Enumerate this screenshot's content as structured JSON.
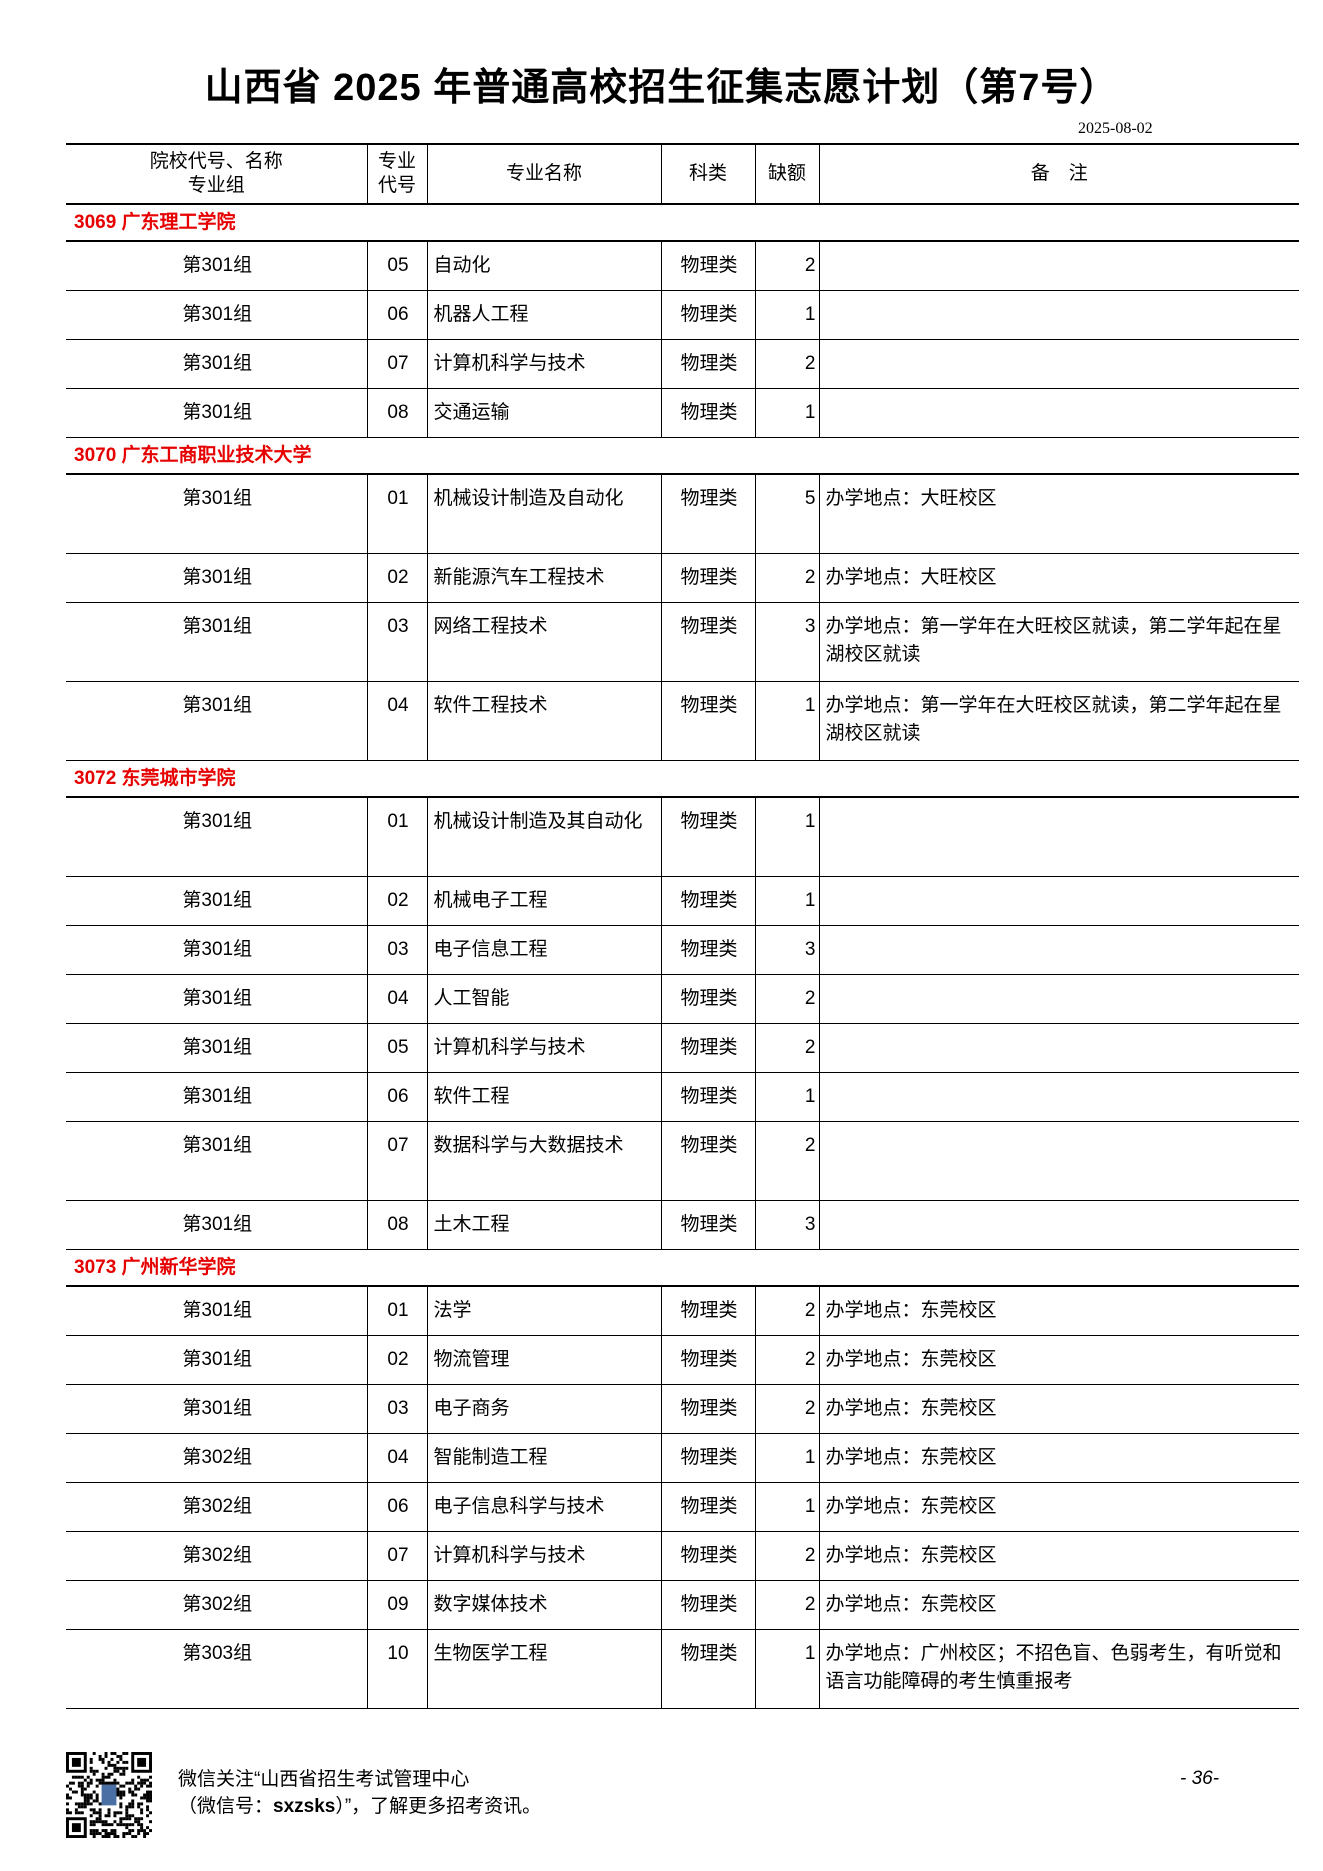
{
  "title": "山西省 2025 年普通高校招生征集志愿计划（第7号）",
  "date": "2025-08-02",
  "headers": {
    "school": "院校代号、名称\n专业组",
    "code": "专业\n代号",
    "name": "专业名称",
    "category": "科类",
    "quota": "缺额",
    "note": "备　注"
  },
  "sections": [
    {
      "school": "3069  广东理工学院",
      "rows": [
        {
          "group": "第301组",
          "code": "05",
          "name": "自动化",
          "category": "物理类",
          "quota": "2",
          "note": "",
          "lines": 1
        },
        {
          "group": "第301组",
          "code": "06",
          "name": "机器人工程",
          "category": "物理类",
          "quota": "1",
          "note": "",
          "lines": 1
        },
        {
          "group": "第301组",
          "code": "07",
          "name": "计算机科学与技术",
          "category": "物理类",
          "quota": "2",
          "note": "",
          "lines": 1
        },
        {
          "group": "第301组",
          "code": "08",
          "name": "交通运输",
          "category": "物理类",
          "quota": "1",
          "note": "",
          "lines": 1
        }
      ]
    },
    {
      "school": "3070  广东工商职业技术大学",
      "rows": [
        {
          "group": "第301组",
          "code": "01",
          "name": "机械设计制造及自动化",
          "category": "物理类",
          "quota": "5",
          "note": "办学地点：大旺校区",
          "lines": 2
        },
        {
          "group": "第301组",
          "code": "02",
          "name": "新能源汽车工程技术",
          "category": "物理类",
          "quota": "2",
          "note": "办学地点：大旺校区",
          "lines": 1
        },
        {
          "group": "第301组",
          "code": "03",
          "name": "网络工程技术",
          "category": "物理类",
          "quota": "3",
          "note": "办学地点：第一学年在大旺校区就读，第二学年起在星湖校区就读",
          "lines": 2
        },
        {
          "group": "第301组",
          "code": "04",
          "name": "软件工程技术",
          "category": "物理类",
          "quota": "1",
          "note": "办学地点：第一学年在大旺校区就读，第二学年起在星湖校区就读",
          "lines": 2
        }
      ]
    },
    {
      "school": "3072  东莞城市学院",
      "rows": [
        {
          "group": "第301组",
          "code": "01",
          "name": "机械设计制造及其自动化",
          "category": "物理类",
          "quota": "1",
          "note": "",
          "lines": 2
        },
        {
          "group": "第301组",
          "code": "02",
          "name": "机械电子工程",
          "category": "物理类",
          "quota": "1",
          "note": "",
          "lines": 1
        },
        {
          "group": "第301组",
          "code": "03",
          "name": "电子信息工程",
          "category": "物理类",
          "quota": "3",
          "note": "",
          "lines": 1
        },
        {
          "group": "第301组",
          "code": "04",
          "name": "人工智能",
          "category": "物理类",
          "quota": "2",
          "note": "",
          "lines": 1
        },
        {
          "group": "第301组",
          "code": "05",
          "name": "计算机科学与技术",
          "category": "物理类",
          "quota": "2",
          "note": "",
          "lines": 1
        },
        {
          "group": "第301组",
          "code": "06",
          "name": "软件工程",
          "category": "物理类",
          "quota": "1",
          "note": "",
          "lines": 1
        },
        {
          "group": "第301组",
          "code": "07",
          "name": "数据科学与大数据技术",
          "category": "物理类",
          "quota": "2",
          "note": "",
          "lines": 2
        },
        {
          "group": "第301组",
          "code": "08",
          "name": "土木工程",
          "category": "物理类",
          "quota": "3",
          "note": "",
          "lines": 1
        }
      ]
    },
    {
      "school": "3073  广州新华学院",
      "rows": [
        {
          "group": "第301组",
          "code": "01",
          "name": "法学",
          "category": "物理类",
          "quota": "2",
          "note": "办学地点：东莞校区",
          "lines": 1
        },
        {
          "group": "第301组",
          "code": "02",
          "name": "物流管理",
          "category": "物理类",
          "quota": "2",
          "note": "办学地点：东莞校区",
          "lines": 1
        },
        {
          "group": "第301组",
          "code": "03",
          "name": "电子商务",
          "category": "物理类",
          "quota": "2",
          "note": "办学地点：东莞校区",
          "lines": 1
        },
        {
          "group": "第302组",
          "code": "04",
          "name": "智能制造工程",
          "category": "物理类",
          "quota": "1",
          "note": "办学地点：东莞校区",
          "lines": 1
        },
        {
          "group": "第302组",
          "code": "06",
          "name": "电子信息科学与技术",
          "category": "物理类",
          "quota": "1",
          "note": "办学地点：东莞校区",
          "lines": 1
        },
        {
          "group": "第302组",
          "code": "07",
          "name": "计算机科学与技术",
          "category": "物理类",
          "quota": "2",
          "note": "办学地点：东莞校区",
          "lines": 1
        },
        {
          "group": "第302组",
          "code": "09",
          "name": "数字媒体技术",
          "category": "物理类",
          "quota": "2",
          "note": "办学地点：东莞校区",
          "lines": 1
        },
        {
          "group": "第303组",
          "code": "10",
          "name": "生物医学工程",
          "category": "物理类",
          "quota": "1",
          "note": "办学地点：广州校区；不招色盲、色弱考生，有听觉和语言功能障碍的考生慎重报考",
          "lines": 2
        }
      ]
    }
  ],
  "footer": {
    "line1": "微信关注“山西省招生考试管理中心",
    "line2_pre": "（微信号：",
    "line2_id": "sxzsks",
    "line2_post": "）”，了解更多招考资讯。",
    "page": "- 36-",
    "qr_icon": "qr-code"
  },
  "colors": {
    "school_heading": "#e60000"
  }
}
